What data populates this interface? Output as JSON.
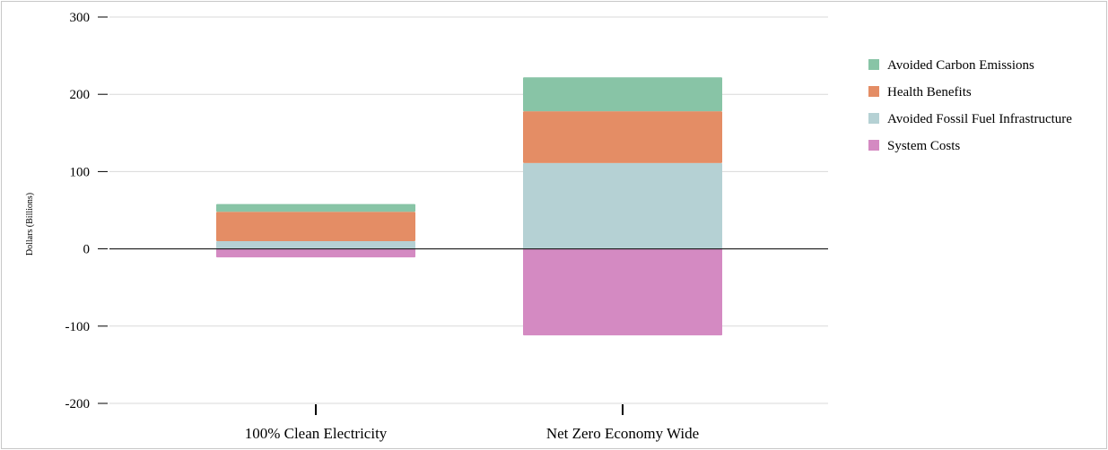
{
  "chart_data": {
    "type": "bar",
    "stacked": true,
    "title": "",
    "xlabel": "",
    "ylabel": "Dollars (Billions)",
    "ylim": [
      -200,
      300
    ],
    "yticks": [
      300,
      200,
      100,
      0,
      -100,
      -200
    ],
    "ytick_labels": [
      "300",
      "200",
      "100",
      "0",
      "-100",
      "-200"
    ],
    "grid": true,
    "legend_position": "right",
    "categories": [
      "100% Clean Electricity",
      "Net Zero Economy Wide"
    ],
    "series": [
      {
        "name": "System Costs",
        "color": "#d48ac2",
        "values": [
          -11,
          -112
        ]
      },
      {
        "name": "Avoided Fossil Fuel Infrastructure",
        "color": "#b5d1d4",
        "values": [
          10,
          111
        ]
      },
      {
        "name": "Health Benefits",
        "color": "#e48d65",
        "values": [
          38,
          67
        ]
      },
      {
        "name": "Avoided Carbon Emissions",
        "color": "#88c4a6",
        "values": [
          10,
          44
        ]
      }
    ],
    "legend_order": [
      "Avoided Carbon Emissions",
      "Health Benefits",
      "Avoided Fossil Fuel Infrastructure",
      "System Costs"
    ]
  }
}
